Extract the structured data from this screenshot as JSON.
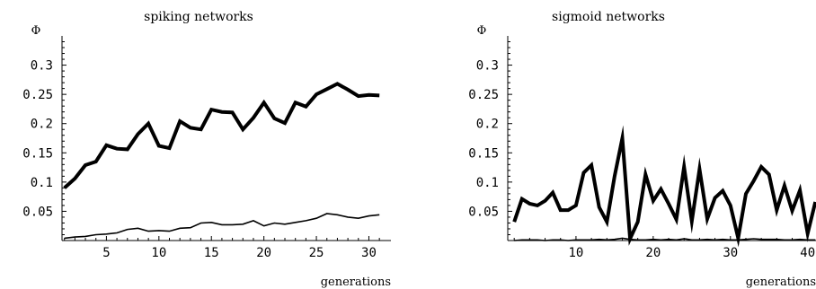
{
  "chart_data": [
    {
      "type": "line",
      "title": "spiking networks",
      "ylabel": "Φ",
      "xlabel": "generations",
      "xlim": [
        0,
        31.5
      ],
      "ylim": [
        0,
        0.35
      ],
      "x_ticks": [
        5,
        10,
        15,
        20,
        25,
        30
      ],
      "y_ticks": [
        0.05,
        0.1,
        0.15,
        0.2,
        0.25,
        0.3
      ],
      "y_tick_labels": [
        "0.05",
        "0.1",
        "0.15",
        "0.2",
        "0.25",
        "0.3"
      ],
      "grid": false,
      "series": [
        {
          "style": "thick",
          "x": [
            1,
            2,
            3,
            4,
            5,
            6,
            7,
            8,
            9,
            10,
            11,
            12,
            13,
            14,
            15,
            16,
            17,
            18,
            19,
            20,
            21,
            22,
            23,
            24,
            25,
            26,
            27,
            28,
            29,
            30,
            31
          ],
          "values": [
            0.09,
            0.106,
            0.129,
            0.135,
            0.163,
            0.157,
            0.156,
            0.182,
            0.2,
            0.162,
            0.158,
            0.204,
            0.193,
            0.19,
            0.224,
            0.22,
            0.219,
            0.19,
            0.21,
            0.236,
            0.209,
            0.201,
            0.236,
            0.229,
            0.25,
            0.259,
            0.268,
            0.258,
            0.247,
            0.249,
            0.248
          ]
        },
        {
          "style": "thin",
          "x": [
            1,
            2,
            3,
            4,
            5,
            6,
            7,
            8,
            9,
            10,
            11,
            12,
            13,
            14,
            15,
            16,
            17,
            18,
            19,
            20,
            21,
            22,
            23,
            24,
            25,
            26,
            27,
            28,
            29,
            30,
            31
          ],
          "values": [
            0.004,
            0.006,
            0.007,
            0.01,
            0.011,
            0.013,
            0.019,
            0.021,
            0.016,
            0.017,
            0.016,
            0.021,
            0.022,
            0.03,
            0.031,
            0.027,
            0.027,
            0.028,
            0.034,
            0.025,
            0.03,
            0.028,
            0.031,
            0.034,
            0.038,
            0.046,
            0.044,
            0.04,
            0.038,
            0.042,
            0.044
          ]
        }
      ]
    },
    {
      "type": "line",
      "title": "sigmoid networks",
      "ylabel": "Φ",
      "xlabel": "generations",
      "xlim": [
        0,
        40.5
      ],
      "ylim": [
        0,
        0.35
      ],
      "x_ticks": [
        10,
        20,
        30,
        40
      ],
      "y_ticks": [
        0.05,
        0.1,
        0.15,
        0.2,
        0.25,
        0.3
      ],
      "y_tick_labels": [
        "0.05",
        "0.1",
        "0.15",
        "0.2",
        "0.25",
        "0.3"
      ],
      "grid": false,
      "series": [
        {
          "style": "thick",
          "x": [
            2,
            3,
            4,
            5,
            6,
            7,
            8,
            9,
            10,
            11,
            12,
            13,
            14,
            15,
            16,
            17,
            18,
            19,
            20,
            21,
            22,
            23,
            24,
            25,
            26,
            27,
            28,
            29,
            30,
            31,
            32,
            33,
            34,
            35,
            36,
            37,
            38,
            39,
            40,
            41
          ],
          "values": [
            0.032,
            0.071,
            0.063,
            0.06,
            0.068,
            0.082,
            0.052,
            0.052,
            0.06,
            0.116,
            0.129,
            0.057,
            0.032,
            0.11,
            0.175,
            0.003,
            0.032,
            0.113,
            0.068,
            0.088,
            0.063,
            0.036,
            0.126,
            0.033,
            0.122,
            0.037,
            0.073,
            0.085,
            0.06,
            0.004,
            0.08,
            0.102,
            0.126,
            0.113,
            0.052,
            0.094,
            0.051,
            0.086,
            0.012,
            0.066
          ]
        },
        {
          "style": "thin",
          "x": [
            2,
            3,
            4,
            5,
            6,
            7,
            8,
            9,
            10,
            11,
            12,
            13,
            14,
            15,
            16,
            17,
            18,
            19,
            20,
            21,
            22,
            23,
            24,
            25,
            26,
            27,
            28,
            29,
            30,
            31,
            32,
            33,
            34,
            35,
            36,
            37,
            38,
            39,
            40,
            41
          ],
          "values": [
            0.0,
            0.001,
            0.001,
            0.001,
            0.0,
            0.001,
            0.001,
            0.0,
            0.001,
            0.001,
            0.001,
            0.002,
            0.001,
            0.002,
            0.004,
            0.002,
            0.001,
            0.001,
            0.002,
            0.001,
            0.002,
            0.001,
            0.003,
            0.001,
            0.001,
            0.002,
            0.001,
            0.002,
            0.001,
            0.001,
            0.002,
            0.003,
            0.002,
            0.002,
            0.002,
            0.001,
            0.001,
            0.002,
            0.001,
            0.001
          ]
        }
      ]
    }
  ]
}
